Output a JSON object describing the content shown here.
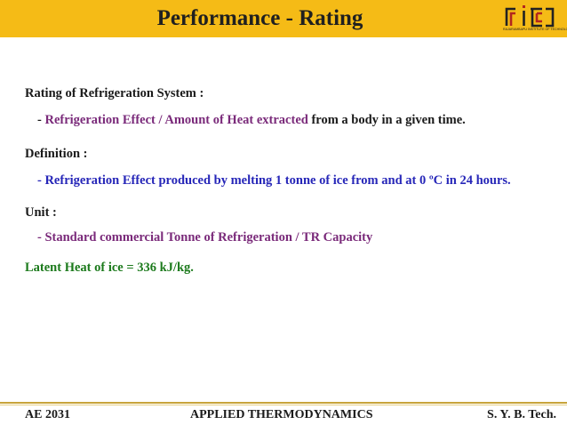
{
  "header": {
    "title": "Performance - Rating",
    "logo_text": "rit",
    "logo_subtitle": "RAJARAMBAPU INSTITUTE OF TECHNOLOGY"
  },
  "content": {
    "rating_heading": "Rating of Refrigeration System :",
    "rating_prefix": "- ",
    "rating_highlight": "Refrigeration Effect / Amount of Heat extracted",
    "rating_suffix": " from a body in a given time.",
    "definition_heading": "Definition :",
    "definition_text": "- Refrigeration Effect produced by melting 1 tonne of ice from and at 0 ºC in 24 hours.",
    "unit_heading": "Unit :",
    "unit_text": "- Standard commercial Tonne of Refrigeration / TR Capacity",
    "latent_heat": "Latent Heat of ice = 336 kJ/kg."
  },
  "footer": {
    "course_code": "AE 2031",
    "course_name": "APPLIED THERMODYNAMICS",
    "class": "S. Y. B. Tech."
  },
  "colors": {
    "header_bg": "#f5bb16",
    "highlight_purple": "#7a2a7a",
    "definition_blue": "#2626b8",
    "unit_purple": "#7a2a7a",
    "latent_green": "#1c7a1c"
  }
}
